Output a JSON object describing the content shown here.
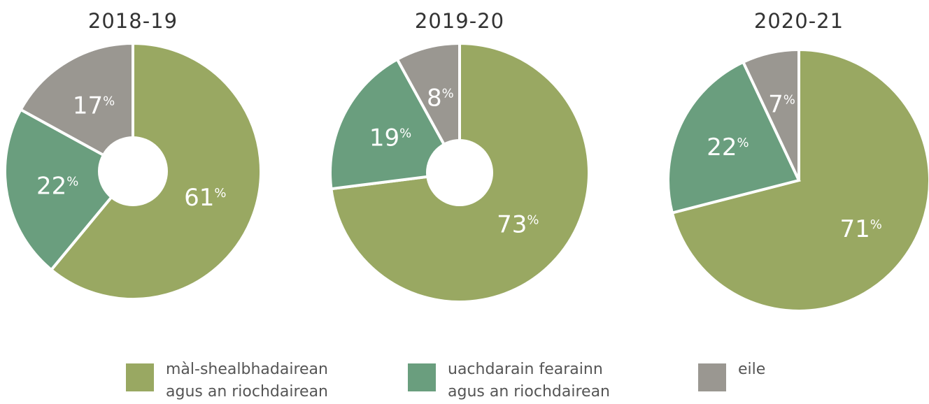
{
  "chart_data": [
    {
      "type": "donut",
      "title": "2018-19",
      "values": [
        61,
        22,
        17
      ],
      "value_labels": [
        "61%",
        "22%",
        "17%"
      ]
    },
    {
      "type": "donut",
      "title": "2019-20",
      "values": [
        73,
        19,
        8
      ],
      "value_labels": [
        "73%",
        "19%",
        "8%"
      ]
    },
    {
      "type": "pie",
      "title": "2020-21",
      "values": [
        71,
        22,
        7
      ],
      "value_labels": [
        "71%",
        "22%",
        "7%"
      ]
    }
  ],
  "legend": {
    "labels": [
      "màl-shealbhadairean agus an riochdairean",
      "uachdarain fearainn agus an riochdairean",
      "eile"
    ],
    "colors": [
      "#99a862",
      "#6a9e7e",
      "#9a9791"
    ]
  }
}
